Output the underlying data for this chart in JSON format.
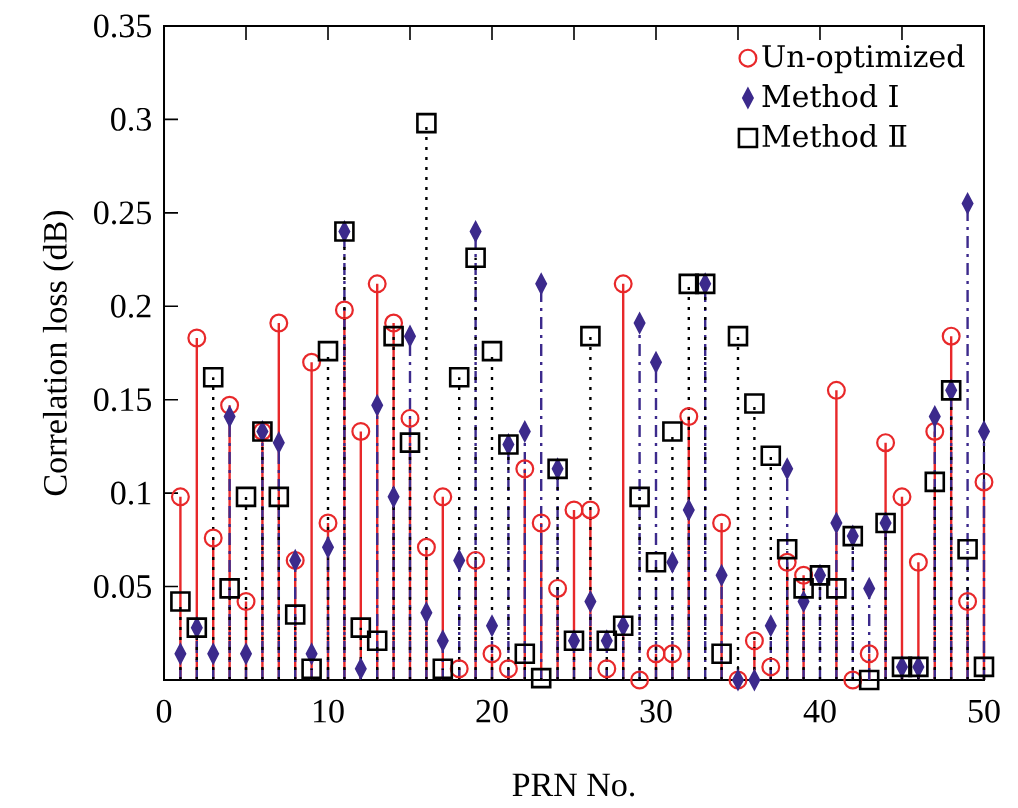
{
  "chart_data": {
    "type": "lollipop",
    "xlabel": "PRN No.",
    "ylabel": "Correlation loss (dB)",
    "x": [
      1,
      2,
      3,
      4,
      5,
      6,
      7,
      8,
      9,
      10,
      11,
      12,
      13,
      14,
      15,
      16,
      17,
      18,
      19,
      20,
      21,
      22,
      23,
      24,
      25,
      26,
      27,
      28,
      29,
      30,
      31,
      32,
      33,
      34,
      35,
      36,
      37,
      38,
      39,
      40,
      41,
      42,
      43,
      44,
      45,
      46,
      47,
      48,
      49,
      50
    ],
    "series": [
      {
        "name": "Un-optimized",
        "color": "#e8282a",
        "marker": "circle",
        "line_style": "solid",
        "values": [
          0.098,
          0.183,
          0.076,
          0.147,
          0.042,
          0.133,
          0.191,
          0.064,
          0.17,
          0.084,
          0.198,
          0.133,
          0.212,
          0.191,
          0.14,
          0.071,
          0.098,
          0.006,
          0.064,
          0.014,
          0.006,
          0.113,
          0.084,
          0.049,
          0.091,
          0.091,
          0.006,
          0.212,
          0.0,
          0.014,
          0.014,
          0.141,
          null,
          0.084,
          0.0,
          0.021,
          0.007,
          0.063,
          0.056,
          null,
          0.155,
          0.0,
          0.014,
          0.127,
          0.098,
          0.063,
          0.133,
          0.184,
          0.042,
          0.106
        ]
      },
      {
        "name": "Method Ⅰ",
        "color": "#3c2a8c",
        "marker": "diamond",
        "line_style": "dashed",
        "values": [
          0.014,
          0.028,
          0.014,
          0.141,
          0.014,
          0.133,
          0.127,
          0.064,
          0.014,
          0.071,
          0.24,
          0.006,
          0.147,
          0.098,
          0.184,
          0.036,
          0.021,
          0.064,
          0.24,
          0.029,
          0.126,
          0.133,
          0.212,
          0.113,
          0.021,
          0.042,
          0.021,
          0.029,
          0.191,
          0.17,
          0.063,
          0.091,
          0.212,
          0.056,
          0.0,
          0.0,
          0.029,
          0.113,
          0.042,
          0.056,
          0.084,
          0.077,
          0.049,
          0.084,
          0.007,
          0.007,
          0.141,
          0.155,
          0.255,
          0.133
        ]
      },
      {
        "name": "Method Ⅱ",
        "color": "#000000",
        "marker": "square",
        "line_style": "dotted",
        "values": [
          0.042,
          0.028,
          0.162,
          0.049,
          0.098,
          0.133,
          0.098,
          0.035,
          0.006,
          0.176,
          0.24,
          0.028,
          0.021,
          0.184,
          0.127,
          0.298,
          0.006,
          0.162,
          0.226,
          0.176,
          0.126,
          0.014,
          0.001,
          0.113,
          0.021,
          0.184,
          0.021,
          0.029,
          0.098,
          0.063,
          0.133,
          0.212,
          0.212,
          0.014,
          0.184,
          0.148,
          0.12,
          0.07,
          0.049,
          0.056,
          0.049,
          0.077,
          0.0,
          0.084,
          0.007,
          0.007,
          0.106,
          0.155,
          0.07,
          0.007
        ]
      }
    ],
    "xlim": [
      0,
      50
    ],
    "xticks": [
      0,
      {
        "value": 5,
        "label": null
      },
      10,
      {
        "value": 15,
        "label": null
      },
      20,
      {
        "value": 25,
        "label": null
      },
      30,
      {
        "value": 35,
        "label": null
      },
      40,
      {
        "value": 45,
        "label": null
      },
      50
    ],
    "ylim": [
      0,
      0.35
    ],
    "yticks": [
      0.05,
      0.1,
      0.15,
      0.2,
      0.25,
      0.3,
      0.35
    ],
    "legend": "top right"
  }
}
